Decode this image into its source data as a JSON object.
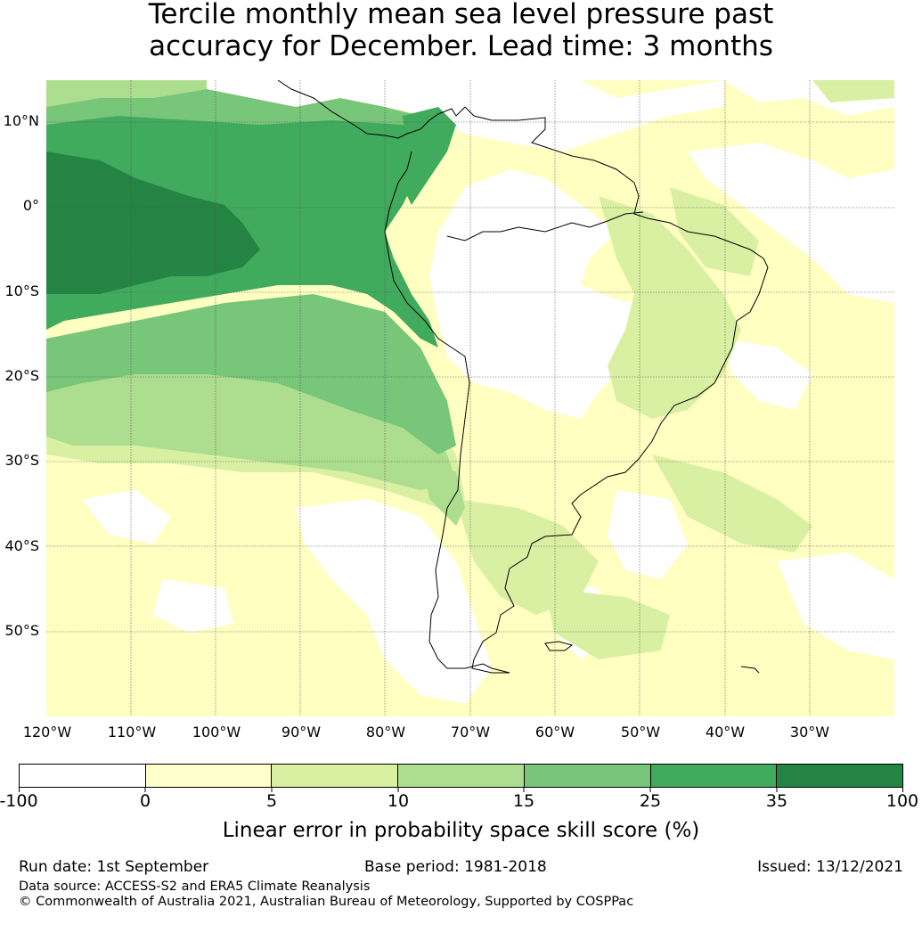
{
  "title": {
    "line1": "Tercile monthly mean sea level pressure past",
    "line2": "accuracy for December. Lead time: 3 months"
  },
  "map": {
    "lat_labels": [
      "10°N",
      "0°",
      "10°S",
      "20°S",
      "30°S",
      "40°S",
      "50°S"
    ],
    "lon_labels": [
      "120°W",
      "110°W",
      "100°W",
      "90°W",
      "80°W",
      "70°W",
      "60°W",
      "50°W",
      "40°W",
      "30°W"
    ],
    "colors": {
      "lt0": "#ffffff",
      "c0_5": "#ffffcc",
      "c5_10": "#d9f0a3",
      "c10_15": "#addd8e",
      "c15_25": "#78c679",
      "c25_35": "#41ab5d",
      "c35_100": "#238443"
    }
  },
  "colorbar": {
    "ticks": [
      "-100",
      "0",
      "5",
      "10",
      "15",
      "25",
      "35",
      "100"
    ],
    "label": "Linear error in probability space skill score (%)"
  },
  "footer": {
    "run_date": "Run date: 1st September",
    "base_period": "Base period: 1981-2018",
    "issued": "Issued: 13/12/2021",
    "data_source": "Data source: ACCESS-S2 and ERA5 Climate Reanalysis",
    "copyright": "© Commonwealth of Australia 2021, Australian Bureau of Meteorology, Supported by COSPPac"
  }
}
